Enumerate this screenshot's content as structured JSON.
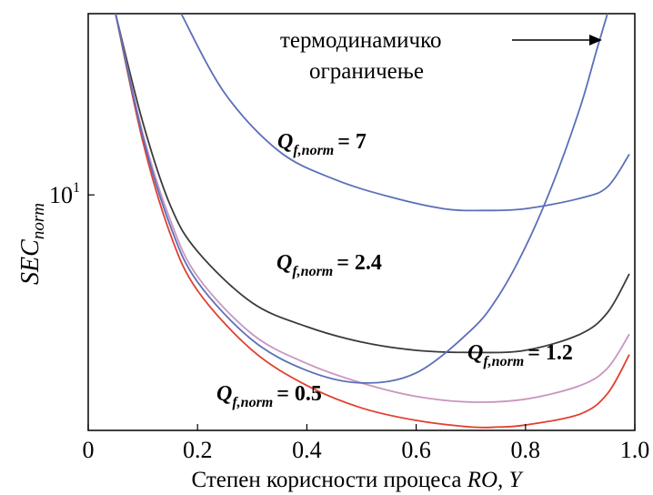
{
  "chart_data": {
    "type": "line",
    "xlabel": "Степен корисности процеса RO, Y",
    "xlabel_main": "Степен корисности процеса ",
    "xlabel_var": "RO, Y",
    "ylabel_main": "SEC",
    "ylabel_sub": "norm",
    "yscale": "log",
    "xlim": [
      0,
      1.0
    ],
    "ylim": [
      2.4,
      30
    ],
    "x_ticks": [
      "0",
      "0.2",
      "0.4",
      "0.6",
      "0.8",
      "1.0"
    ],
    "y_tick_base": "10",
    "y_tick_exp": "1",
    "grid": false,
    "series": [
      {
        "name": "Q f,norm = 7",
        "color": "#5b6fb8",
        "x": [
          0.17,
          0.25,
          0.35,
          0.45,
          0.55,
          0.65,
          0.72,
          0.8,
          0.9,
          0.95,
          0.99
        ],
        "y": [
          30,
          18.5,
          13.0,
          11.0,
          9.9,
          9.2,
          9.1,
          9.2,
          9.8,
          10.5,
          12.8
        ]
      },
      {
        "name": "Q f,norm = 2.4",
        "color": "#3a3a3a",
        "x": [
          0.05,
          0.1,
          0.15,
          0.2,
          0.3,
          0.4,
          0.5,
          0.6,
          0.7,
          0.8,
          0.9,
          0.95,
          0.99
        ],
        "y": [
          30,
          15.5,
          9.4,
          7.1,
          5.2,
          4.5,
          4.1,
          3.9,
          3.85,
          3.9,
          4.3,
          4.9,
          6.2
        ]
      },
      {
        "name": "Q f,norm = 1.2",
        "color": "#c896c0",
        "x": [
          0.05,
          0.1,
          0.15,
          0.2,
          0.3,
          0.4,
          0.5,
          0.6,
          0.7,
          0.8,
          0.9,
          0.95,
          0.99
        ],
        "y": [
          30,
          14.5,
          8.6,
          6.1,
          4.3,
          3.6,
          3.2,
          2.95,
          2.85,
          2.9,
          3.15,
          3.5,
          4.3
        ]
      },
      {
        "name": "Q f,norm = 0.5",
        "color": "#e04030",
        "x": [
          0.05,
          0.1,
          0.15,
          0.2,
          0.3,
          0.4,
          0.5,
          0.6,
          0.7,
          0.75,
          0.8,
          0.9,
          0.95,
          0.99
        ],
        "y": [
          30,
          13.8,
          7.9,
          5.6,
          3.9,
          3.15,
          2.75,
          2.55,
          2.45,
          2.45,
          2.48,
          2.65,
          3.0,
          3.8
        ]
      },
      {
        "name": "термодинамичко ограничење",
        "color": "#5b6fb8",
        "x": [
          0.05,
          0.1,
          0.15,
          0.2,
          0.3,
          0.4,
          0.5,
          0.6,
          0.7,
          0.75,
          0.8,
          0.85,
          0.9,
          0.93,
          0.95
        ],
        "y": [
          30,
          14.2,
          8.3,
          5.9,
          4.15,
          3.45,
          3.2,
          3.4,
          4.4,
          5.4,
          7.3,
          10.7,
          17.0,
          24.0,
          30
        ]
      }
    ],
    "annotations": [
      {
        "label": "Q",
        "sub": "f,norm",
        "value": "= 7",
        "series": "Q f,norm = 7"
      },
      {
        "label": "Q",
        "sub": "f,norm",
        "value": "= 2.4",
        "series": "Q f,norm = 2.4"
      },
      {
        "label": "Q",
        "sub": "f,norm",
        "value": "= 1.2",
        "series": "Q f,norm = 1.2"
      },
      {
        "label": "Q",
        "sub": "f,norm",
        "value": "= 0.5",
        "series": "Q f,norm = 0.5"
      }
    ],
    "limit_label_line1": "термодинамичко",
    "limit_label_line2": "ограничење"
  }
}
